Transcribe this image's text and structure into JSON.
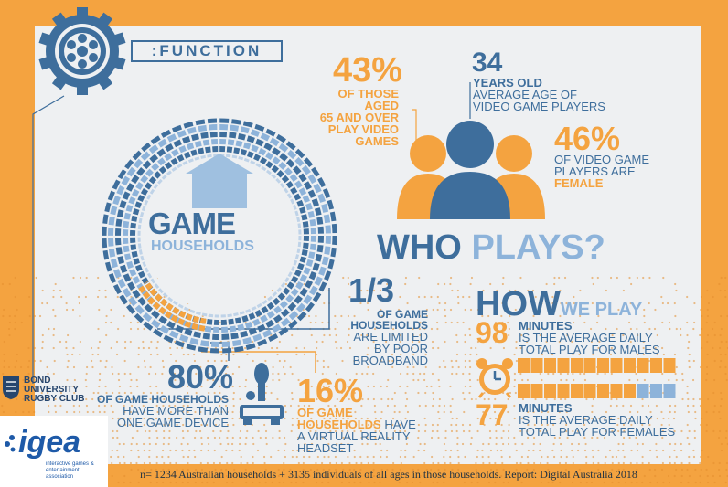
{
  "header": {
    "title": ":FUNCTION"
  },
  "game_households": {
    "line1": "GAME",
    "line2": "HOUSEHOLDS",
    "icon": "house-icon"
  },
  "stat_65": {
    "value": "43%",
    "l1": "OF THOSE AGED",
    "l2": "65 AND OVER",
    "l3": "PLAY VIDEO",
    "l4": "GAMES"
  },
  "stat_age": {
    "value": "34",
    "l1": "YEARS OLD",
    "l2": "AVERAGE AGE OF",
    "l3": "VIDEO GAME PLAYERS"
  },
  "stat_female": {
    "value": "46%",
    "l1": "OF VIDEO GAME",
    "l2": "PLAYERS ARE",
    "l3": "FEMALE"
  },
  "who_plays": {
    "a": "WHO ",
    "b": "PLAYS?"
  },
  "broadband": {
    "value": "1/3",
    "l1": "OF GAME",
    "l2": "HOUSEHOLDS",
    "l3": "ARE LIMITED",
    "l4": "BY POOR",
    "l5": "BROADBAND"
  },
  "devices": {
    "value": "80%",
    "l1": "OF GAME HOUSEHOLDS",
    "l2": "HAVE MORE THAN",
    "l3": "ONE GAME DEVICE"
  },
  "vr": {
    "value": "16%",
    "l1": "OF GAME",
    "l2a": "HOUSEHOLDS",
    "l2b": " HAVE",
    "l3": "A VIRTUAL REALITY",
    "l4": "HEADSET"
  },
  "how_we_play": {
    "a": "HOW",
    "b": "WE PLAY"
  },
  "males": {
    "value": "98",
    "l1": "MINUTES",
    "l2": "IS THE AVERAGE DAILY",
    "l3": "TOTAL PLAY FOR MALES",
    "filled_segments": 12,
    "total_segments": 12
  },
  "females": {
    "value": "77",
    "l1": "MINUTES",
    "l2": "IS THE AVERAGE DAILY",
    "l3": "TOTAL PLAY FOR FEMALES",
    "filled_segments": 9,
    "total_segments": 12
  },
  "logos": {
    "bond": {
      "l1": "BOND",
      "l2": "UNIVERSITY",
      "l3": "RUGBY CLUB"
    },
    "igea": {
      "name": "igea",
      "sub1": "interactive games &",
      "sub2": "entertainment association"
    }
  },
  "footer": {
    "text": "n= 1234 Australian households + 3135 individuals of all ages in those households. Report: Digital Australia 2018"
  },
  "colors": {
    "orange": "#F4A340",
    "blue": "#3E6E9C",
    "light_blue": "#8DB3DA",
    "panel": "#EEF0F2"
  }
}
